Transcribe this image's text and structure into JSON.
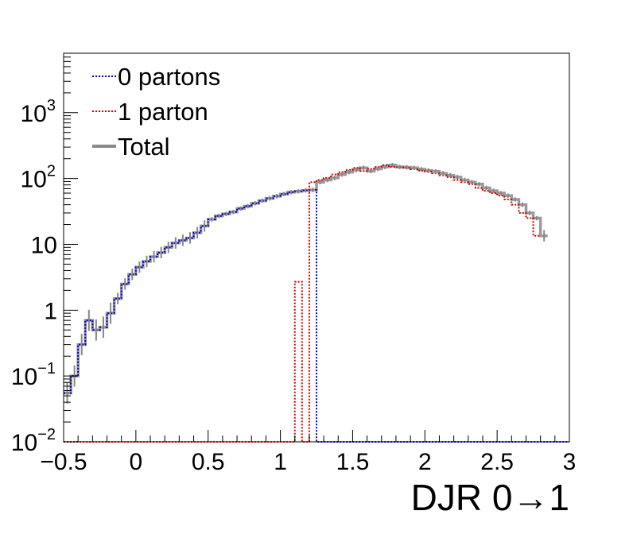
{
  "chart_data": {
    "type": "line",
    "title": "",
    "xlabel": "DJR 0→1",
    "ylabel": "",
    "xlim": [
      -0.5,
      3.0
    ],
    "ylim": [
      0.01,
      8000
    ],
    "yscale": "log",
    "grid": false,
    "legend_position": "top-left",
    "bin_width": 0.05,
    "x_ticks": [
      {
        "value": -0.5,
        "label": "−0.5"
      },
      {
        "value": 0,
        "label": "0"
      },
      {
        "value": 0.5,
        "label": "0.5"
      },
      {
        "value": 1,
        "label": "1"
      },
      {
        "value": 1.5,
        "label": "1.5"
      },
      {
        "value": 2,
        "label": "2"
      },
      {
        "value": 2.5,
        "label": "2.5"
      },
      {
        "value": 3,
        "label": "3"
      }
    ],
    "y_ticks": [
      {
        "value": 0.01,
        "base": "10",
        "exp": "−2"
      },
      {
        "value": 0.1,
        "base": "10",
        "exp": "−1"
      },
      {
        "value": 1,
        "base": "1",
        "exp": ""
      },
      {
        "value": 10,
        "base": "10",
        "exp": ""
      },
      {
        "value": 100,
        "base": "10",
        "exp": "2"
      },
      {
        "value": 1000,
        "base": "10",
        "exp": "3"
      }
    ],
    "series": [
      {
        "name": "0 partons",
        "color": "#0000cc",
        "style": "dotted",
        "x_start": -0.5,
        "values": [
          0.055,
          0.1,
          0.3,
          0.7,
          0.5,
          0.55,
          0.9,
          1.5,
          2.5,
          3.5,
          4.5,
          5.5,
          6.5,
          7.5,
          9,
          10.5,
          11.5,
          12.5,
          15,
          19,
          24,
          27,
          29,
          31,
          35,
          38,
          42,
          46,
          50,
          54,
          58,
          62,
          64,
          66,
          67,
          0.01,
          0.01,
          0.01,
          0.01,
          0.01,
          0.01,
          0.01,
          0.01,
          0.01,
          0.01,
          0.01,
          0.01,
          0.01,
          0.01,
          0.01,
          0.01,
          0.01,
          0.01,
          0.01,
          0.01,
          0.01,
          0.01,
          0.01,
          0.01,
          0.01,
          0.01,
          0.01,
          0.01,
          0.01,
          0.01,
          0.01,
          0.01,
          0.01,
          0.01,
          0.01
        ]
      },
      {
        "name": "1 parton",
        "color": "#cc0000",
        "style": "dotted",
        "x_start": -0.5,
        "values": [
          0.01,
          0.01,
          0.01,
          0.01,
          0.01,
          0.01,
          0.01,
          0.01,
          0.01,
          0.01,
          0.01,
          0.01,
          0.01,
          0.01,
          0.01,
          0.01,
          0.01,
          0.01,
          0.01,
          0.01,
          0.01,
          0.01,
          0.01,
          0.01,
          0.01,
          0.01,
          0.01,
          0.01,
          0.01,
          0.01,
          0.01,
          0.01,
          2.7,
          0.01,
          88,
          95,
          102,
          115,
          125,
          135,
          145,
          130,
          140,
          150,
          160,
          150,
          148,
          145,
          138,
          132,
          128,
          120,
          112,
          105,
          95,
          88,
          82,
          72,
          65,
          60,
          55,
          48,
          40,
          30,
          25,
          13.5
        ]
      },
      {
        "name": "Total",
        "color": "#888888",
        "style": "solid",
        "x_start": -0.5,
        "values": [
          0.055,
          0.1,
          0.3,
          0.7,
          0.5,
          0.55,
          0.9,
          1.5,
          2.5,
          3.5,
          4.5,
          5.5,
          6.5,
          7.5,
          9,
          10.5,
          11.5,
          12.5,
          15,
          19,
          24,
          27,
          29,
          31,
          35,
          38,
          42,
          46,
          50,
          54,
          58,
          62,
          64,
          66,
          67,
          88,
          95,
          102,
          115,
          125,
          135,
          145,
          130,
          140,
          150,
          160,
          150,
          148,
          145,
          138,
          132,
          128,
          120,
          112,
          105,
          95,
          88,
          82,
          72,
          65,
          60,
          55,
          48,
          40,
          30,
          25,
          13.5
        ]
      }
    ]
  }
}
